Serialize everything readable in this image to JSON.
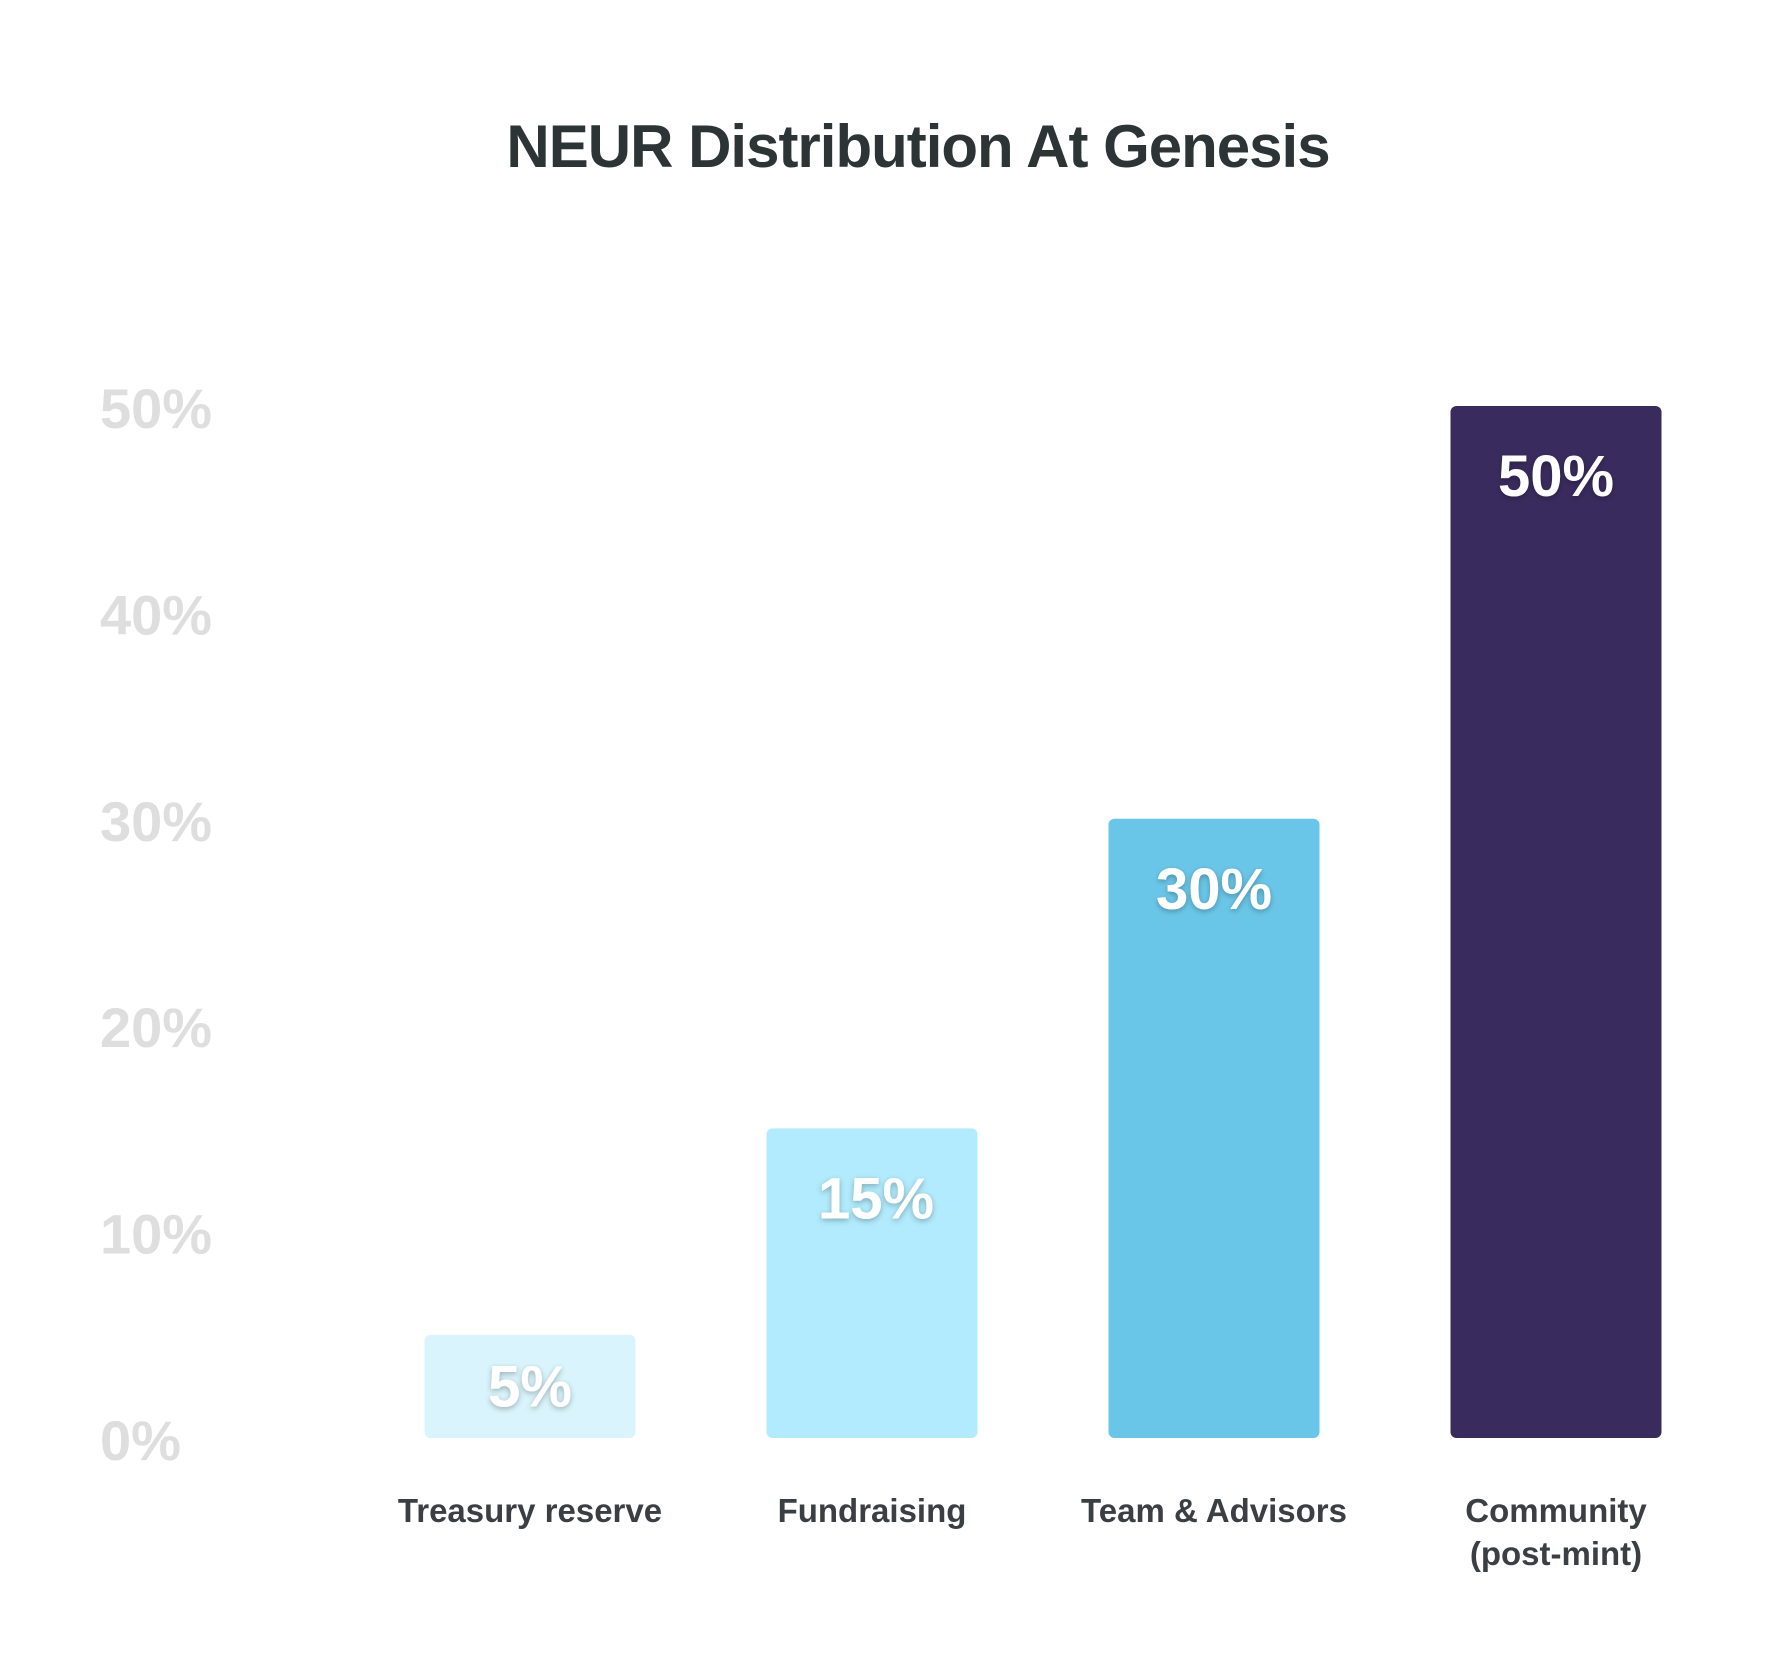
{
  "chart_data": {
    "type": "bar",
    "title": "NEUR Distribution At Genesis",
    "categories": [
      [
        "Treasury reserve"
      ],
      [
        "Fundraising"
      ],
      [
        "Team & Advisors"
      ],
      [
        "Community",
        "(post-mint)"
      ]
    ],
    "values": [
      5,
      15,
      30,
      50
    ],
    "data_labels": [
      "5%",
      "15%",
      "30%",
      "50%"
    ],
    "colors": [
      "#d9f4fc",
      "#b1ebfd",
      "#6ac6e8",
      "#3a2b5e"
    ],
    "y_ticks": [
      0,
      10,
      20,
      30,
      40,
      50
    ],
    "y_tick_labels": [
      "0%",
      "10%",
      "20%",
      "30%",
      "40%",
      "50%"
    ],
    "ylim": [
      0,
      50
    ],
    "grid": false,
    "legend": "none",
    "xlabel": "",
    "ylabel": ""
  }
}
